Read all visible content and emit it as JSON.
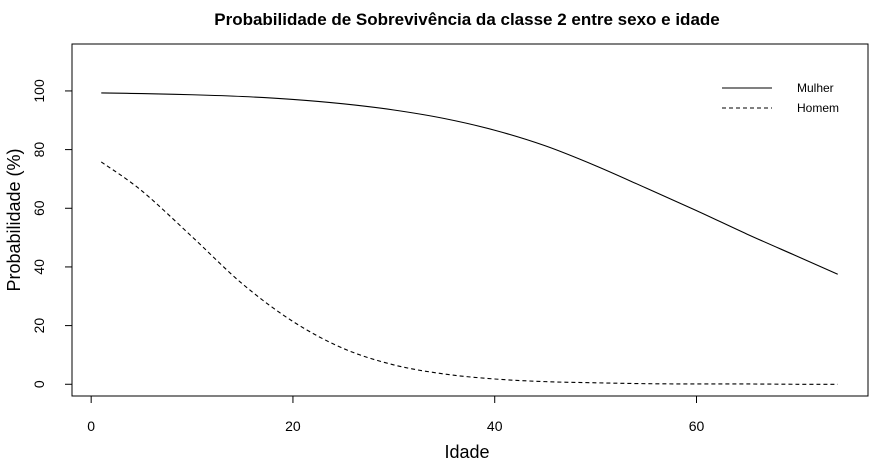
{
  "chart_data": {
    "type": "line",
    "title": "Probabilidade de Sobrevivência da classe 2 entre sexo e idade",
    "xlabel": "Idade",
    "ylabel": "Probabilidade (%)",
    "xlim": [
      -1.9,
      77
    ],
    "ylim": [
      -4,
      116
    ],
    "x_ticks": [
      "0",
      "20",
      "40",
      "60"
    ],
    "y_ticks": [
      "0",
      "20",
      "40",
      "60",
      "80",
      "100"
    ],
    "grid": false,
    "legend_position": "top-right",
    "x": [
      1,
      5,
      10,
      15,
      20,
      25,
      30,
      35,
      40,
      45,
      50,
      55,
      60,
      65,
      70,
      74
    ],
    "series": [
      {
        "name": "Mulher",
        "line_style": "solid",
        "values": [
          99.3,
          99.1,
          98.7,
          98.1,
          97.1,
          95.6,
          93.5,
          90.6,
          86.6,
          81.3,
          74.5,
          66.9,
          59.2,
          51.2,
          43.6,
          37.5
        ]
      },
      {
        "name": "Homem",
        "line_style": "dashed",
        "values": [
          75.8,
          66.0,
          50.3,
          34.2,
          21.4,
          12.2,
          6.6,
          3.5,
          1.8,
          0.9,
          0.5,
          0.2,
          0.1,
          0.1,
          0.0,
          0.0
        ]
      }
    ],
    "colors": {
      "line": "#000000",
      "axis": "#000000"
    }
  }
}
